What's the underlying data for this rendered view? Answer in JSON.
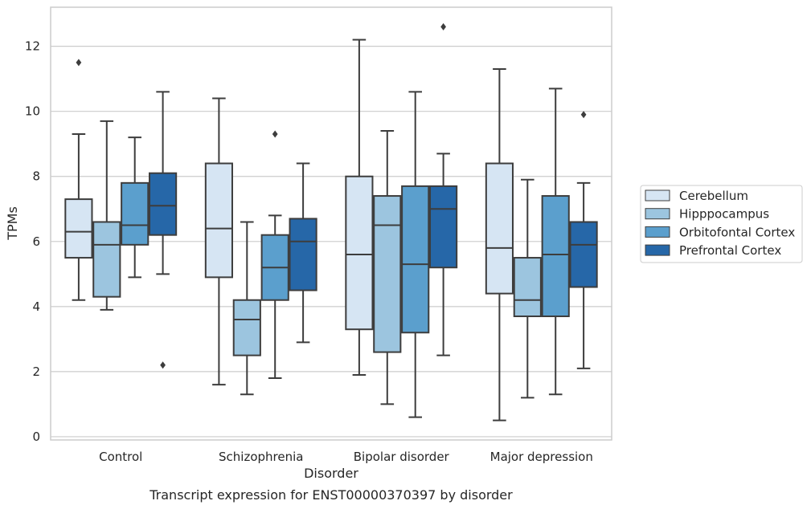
{
  "chart_data": {
    "type": "box",
    "xlabel": "Disorder",
    "ylabel": "TPMs",
    "caption": "Transcript expression for ENST00000370397 by disorder",
    "ylim": [
      -0.1,
      13.2
    ],
    "yticks": [
      0,
      2,
      4,
      6,
      8,
      10,
      12
    ],
    "grid": "horizontal",
    "legend_position": "right",
    "categories": [
      "Control",
      "Schizophrenia",
      "Bipolar disorder",
      "Major depression"
    ],
    "series": [
      {
        "name": "Cerebellum",
        "color": "#d6e5f3",
        "boxes": [
          {
            "whislo": 4.2,
            "q1": 5.5,
            "med": 6.3,
            "q3": 7.3,
            "whishi": 9.3,
            "fliers": [
              11.5
            ]
          },
          {
            "whislo": 1.6,
            "q1": 4.9,
            "med": 6.4,
            "q3": 8.4,
            "whishi": 10.4,
            "fliers": []
          },
          {
            "whislo": 1.9,
            "q1": 3.3,
            "med": 5.6,
            "q3": 8.0,
            "whishi": 12.2,
            "fliers": []
          },
          {
            "whislo": 0.5,
            "q1": 4.4,
            "med": 5.8,
            "q3": 8.4,
            "whishi": 11.3,
            "fliers": []
          }
        ]
      },
      {
        "name": "Hipppocampus",
        "color": "#9cc5df",
        "boxes": [
          {
            "whislo": 3.9,
            "q1": 4.3,
            "med": 5.9,
            "q3": 6.6,
            "whishi": 9.7,
            "fliers": []
          },
          {
            "whislo": 1.3,
            "q1": 2.5,
            "med": 3.6,
            "q3": 4.2,
            "whishi": 6.6,
            "fliers": []
          },
          {
            "whislo": 1.0,
            "q1": 2.6,
            "med": 6.5,
            "q3": 7.4,
            "whishi": 9.4,
            "fliers": []
          },
          {
            "whislo": 1.2,
            "q1": 3.7,
            "med": 4.2,
            "q3": 5.5,
            "whishi": 7.9,
            "fliers": []
          }
        ]
      },
      {
        "name": "Orbitofontal Cortex",
        "color": "#5b9fcd",
        "boxes": [
          {
            "whislo": 4.9,
            "q1": 5.9,
            "med": 6.5,
            "q3": 7.8,
            "whishi": 9.2,
            "fliers": []
          },
          {
            "whislo": 1.8,
            "q1": 4.2,
            "med": 5.2,
            "q3": 6.2,
            "whishi": 6.8,
            "fliers": [
              9.3
            ]
          },
          {
            "whislo": 0.6,
            "q1": 3.2,
            "med": 5.3,
            "q3": 7.7,
            "whishi": 10.6,
            "fliers": []
          },
          {
            "whislo": 1.3,
            "q1": 3.7,
            "med": 5.6,
            "q3": 7.4,
            "whishi": 10.7,
            "fliers": []
          }
        ]
      },
      {
        "name": "Prefrontal Cortex",
        "color": "#2667a8",
        "boxes": [
          {
            "whislo": 5.0,
            "q1": 6.2,
            "med": 7.1,
            "q3": 8.1,
            "whishi": 10.6,
            "fliers": [
              2.2
            ]
          },
          {
            "whislo": 2.9,
            "q1": 4.5,
            "med": 6.0,
            "q3": 6.7,
            "whishi": 8.4,
            "fliers": []
          },
          {
            "whislo": 2.5,
            "q1": 5.2,
            "med": 7.0,
            "q3": 7.7,
            "whishi": 8.7,
            "fliers": [
              12.6
            ]
          },
          {
            "whislo": 2.1,
            "q1": 4.6,
            "med": 5.9,
            "q3": 6.6,
            "whishi": 7.8,
            "fliers": [
              9.9
            ]
          }
        ]
      }
    ]
  }
}
